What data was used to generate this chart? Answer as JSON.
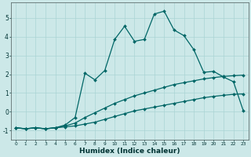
{
  "xlabel": "Humidex (Indice chaleur)",
  "ylabel": "",
  "bg_color": "#cce8e8",
  "line_color": "#006666",
  "grid_color": "#aad4d4",
  "xlim": [
    -0.5,
    23.5
  ],
  "ylim": [
    -1.5,
    5.8
  ],
  "xticks": [
    0,
    1,
    2,
    3,
    4,
    5,
    6,
    7,
    8,
    9,
    10,
    11,
    12,
    13,
    14,
    15,
    16,
    17,
    18,
    19,
    20,
    21,
    22,
    23
  ],
  "yticks": [
    -1,
    0,
    1,
    2,
    3,
    4,
    5
  ],
  "line1_x": [
    0,
    1,
    2,
    3,
    4,
    5,
    6,
    7,
    8,
    9,
    10,
    11,
    12,
    13,
    14,
    15,
    16,
    17,
    18,
    19,
    20,
    21,
    22,
    23
  ],
  "line1_y": [
    -0.85,
    -0.9,
    -0.85,
    -0.9,
    -0.85,
    -0.8,
    -0.75,
    -0.65,
    -0.55,
    -0.4,
    -0.25,
    -0.1,
    0.05,
    0.15,
    0.25,
    0.35,
    0.45,
    0.55,
    0.65,
    0.75,
    0.82,
    0.88,
    0.93,
    0.95
  ],
  "line2_x": [
    0,
    1,
    2,
    3,
    4,
    5,
    6,
    7,
    8,
    9,
    10,
    11,
    12,
    13,
    14,
    15,
    16,
    17,
    18,
    19,
    20,
    21,
    22,
    23
  ],
  "line2_y": [
    -0.85,
    -0.9,
    -0.85,
    -0.9,
    -0.85,
    -0.75,
    -0.6,
    -0.3,
    -0.05,
    0.2,
    0.45,
    0.65,
    0.85,
    1.0,
    1.15,
    1.3,
    1.45,
    1.55,
    1.65,
    1.75,
    1.82,
    1.88,
    1.92,
    1.95
  ],
  "line3_x": [
    0,
    1,
    2,
    3,
    4,
    5,
    6,
    7,
    8,
    9,
    10,
    11,
    12,
    13,
    14,
    15,
    16,
    17,
    18,
    19,
    20,
    21,
    22,
    23
  ],
  "line3_y": [
    -0.85,
    -0.9,
    -0.85,
    -0.9,
    -0.85,
    -0.7,
    -0.3,
    2.05,
    1.7,
    2.2,
    3.85,
    4.55,
    3.75,
    3.85,
    5.2,
    5.35,
    4.35,
    4.05,
    3.3,
    2.1,
    2.15,
    1.85,
    1.6,
    0.05
  ]
}
